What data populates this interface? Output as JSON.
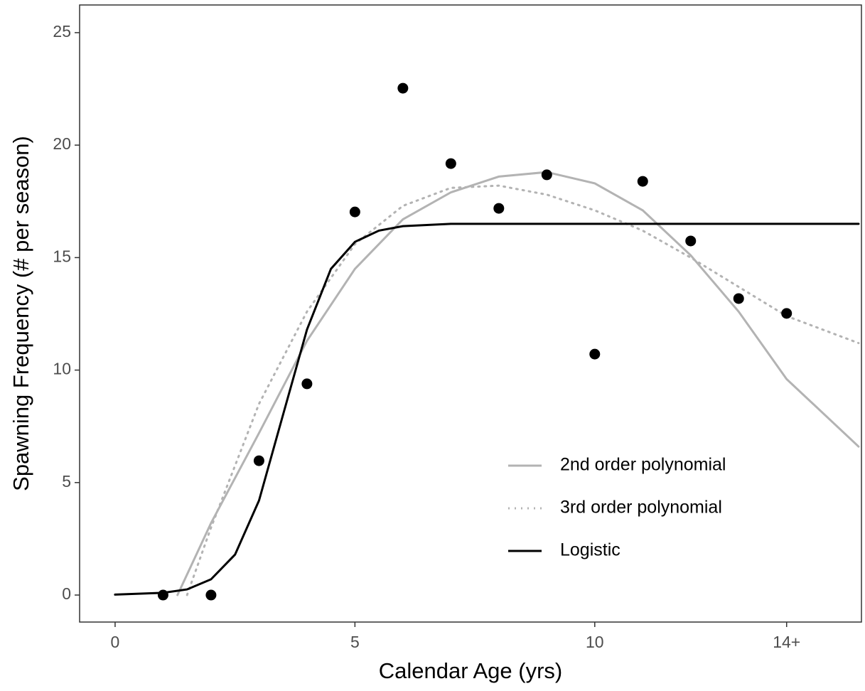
{
  "chart_data": {
    "type": "scatter",
    "x_label": "Calendar Age (yrs)",
    "y_label": "Spawning Frequency (# per season)",
    "xlim": [
      -0.74,
      15.56
    ],
    "ylim": [
      -1.2,
      26.23
    ],
    "xticks": [
      0,
      5,
      10,
      {
        "value": 14,
        "label": "14+"
      }
    ],
    "yticks": [
      0,
      5,
      10,
      15,
      20,
      25
    ],
    "points": {
      "color": "#000000",
      "x": [
        1,
        2,
        3,
        4,
        5,
        6,
        7,
        8,
        9,
        10,
        11,
        12,
        13,
        14
      ],
      "values": [
        0,
        0,
        5.97,
        9.39,
        17.03,
        22.53,
        19.18,
        17.19,
        18.68,
        10.71,
        18.39,
        15.74,
        13.18,
        12.52
      ]
    },
    "series": [
      {
        "name": "2nd order polynomial",
        "color": "#b3b3b3",
        "dash": "solid",
        "x": [
          1.3,
          2,
          3,
          4,
          5,
          6,
          7,
          8,
          9,
          10,
          11,
          12,
          13,
          14,
          15.5
        ],
        "values": [
          0,
          3.2,
          7.2,
          11.3,
          14.5,
          16.7,
          17.9,
          18.6,
          18.8,
          18.3,
          17.1,
          15.1,
          12.6,
          9.6,
          6.6
        ]
      },
      {
        "name": "3rd order polynomial",
        "color": "#b3b3b3",
        "dash": "dotted",
        "x": [
          1.5,
          2,
          3,
          4,
          5,
          6,
          7,
          8,
          9,
          10,
          11,
          12,
          13,
          14,
          15.5
        ],
        "values": [
          0,
          3,
          8.5,
          12.6,
          15.6,
          17.3,
          18.1,
          18.2,
          17.8,
          17.1,
          16.2,
          15,
          13.7,
          12.4,
          11.2
        ]
      },
      {
        "name": "Logistic",
        "color": "#000000",
        "dash": "solid",
        "x": [
          0,
          1,
          1.5,
          2,
          2.5,
          3,
          3.5,
          4,
          4.5,
          5,
          5.5,
          6,
          7,
          10,
          15.5
        ],
        "values": [
          0.02,
          0.1,
          0.25,
          0.7,
          1.8,
          4.2,
          8,
          11.8,
          14.5,
          15.7,
          16.2,
          16.4,
          16.5,
          16.5,
          16.5
        ]
      }
    ],
    "legend": "bottom-right"
  }
}
